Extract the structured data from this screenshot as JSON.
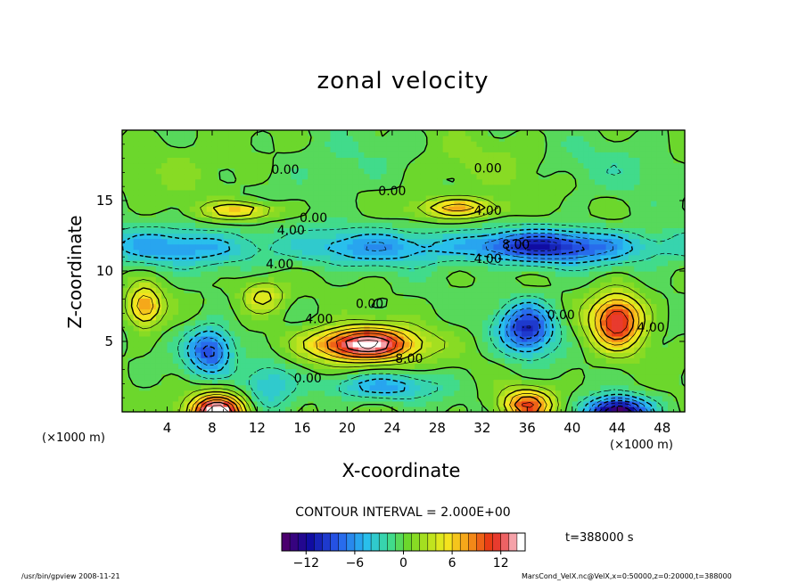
{
  "chart_data": {
    "type": "heatmap",
    "title": "zonal velocity",
    "xlabel": "X-coordinate",
    "ylabel": "Z-coordinate",
    "x_unit_left": "(×1000 m)",
    "x_unit_right": "(×1000 m)",
    "x_ticks": [
      4,
      8,
      12,
      16,
      20,
      24,
      28,
      32,
      36,
      40,
      44,
      48
    ],
    "y_ticks": [
      5,
      10,
      15
    ],
    "xlim": [
      0,
      50
    ],
    "ylim": [
      0,
      20
    ],
    "contour_interval_text": "CONTOUR INTERVAL = 2.000E+00",
    "time_text": "t=388000 s",
    "colorbar": {
      "range": [
        -15,
        15
      ],
      "ticks": [
        -12,
        -6,
        0,
        6,
        12
      ],
      "tick_labels": [
        "−12",
        "−6",
        "0",
        "6",
        "12"
      ]
    },
    "contour_labels": [
      {
        "text": "0.00",
        "x": 14.5,
        "z": 17.2
      },
      {
        "text": "0.00",
        "x": 32.5,
        "z": 17.3
      },
      {
        "text": "0.00",
        "x": 24.0,
        "z": 15.7
      },
      {
        "text": "4.00",
        "x": 32.5,
        "z": 14.3
      },
      {
        "text": "0.00",
        "x": 17.0,
        "z": 13.8
      },
      {
        "text": "4.00",
        "x": 15.0,
        "z": 12.9
      },
      {
        "text": "8.00",
        "x": 35.0,
        "z": 11.9
      },
      {
        "text": "4.00",
        "x": 32.5,
        "z": 10.9
      },
      {
        "text": "4.00",
        "x": 14.0,
        "z": 10.5
      },
      {
        "text": "0.00",
        "x": 22.0,
        "z": 7.7
      },
      {
        "text": "4.00",
        "x": 17.5,
        "z": 6.6
      },
      {
        "text": "8.00",
        "x": 25.5,
        "z": 3.8
      },
      {
        "text": "0.00",
        "x": 16.5,
        "z": 2.4
      },
      {
        "text": "0.00",
        "x": 39.0,
        "z": 6.9
      },
      {
        "text": "4.00",
        "x": 47.0,
        "z": 6.0
      }
    ],
    "features": [
      {
        "x": 21.5,
        "z": 4.8,
        "sx": 4.6,
        "sz": 1.2,
        "v": 15
      },
      {
        "x": 44.0,
        "z": 6.5,
        "sx": 2.3,
        "sz": 1.9,
        "v": 12
      },
      {
        "x": 8.5,
        "z": 0.0,
        "sx": 2.4,
        "sz": 1.3,
        "v": 16
      },
      {
        "x": 36.0,
        "z": 0.5,
        "sx": 2.2,
        "sz": 1.1,
        "v": 10
      },
      {
        "x": 44.0,
        "z": 0.0,
        "sx": 2.6,
        "sz": 1.0,
        "v": -15
      },
      {
        "x": 36.0,
        "z": 6.0,
        "sx": 2.4,
        "sz": 1.8,
        "v": -10
      },
      {
        "x": 7.8,
        "z": 4.4,
        "sx": 2.0,
        "sz": 1.6,
        "v": -9
      },
      {
        "x": 30.0,
        "z": 14.5,
        "sx": 3.6,
        "sz": 0.7,
        "v": 7
      },
      {
        "x": 10.5,
        "z": 14.3,
        "sx": 3.2,
        "sz": 0.6,
        "v": 6
      },
      {
        "x": 36.0,
        "z": 11.8,
        "sx": 6.0,
        "sz": 1.0,
        "v": -6
      },
      {
        "x": 12.5,
        "z": 8.2,
        "sx": 2.0,
        "sz": 1.2,
        "v": 5
      },
      {
        "x": 2.0,
        "z": 7.5,
        "sx": 1.5,
        "sz": 1.4,
        "v": 8
      },
      {
        "x": 23.0,
        "z": 1.8,
        "sx": 5.0,
        "sz": 0.9,
        "v": -5
      },
      {
        "x": 13.0,
        "z": 2.0,
        "sx": 2.5,
        "sz": 1.8,
        "v": -4
      }
    ]
  },
  "footer": {
    "left": "/usr/bin/gpview  2008-11-21",
    "right": "MarsCond_VelX.nc@VelX,x=0:50000,z=0:20000,t=388000"
  }
}
